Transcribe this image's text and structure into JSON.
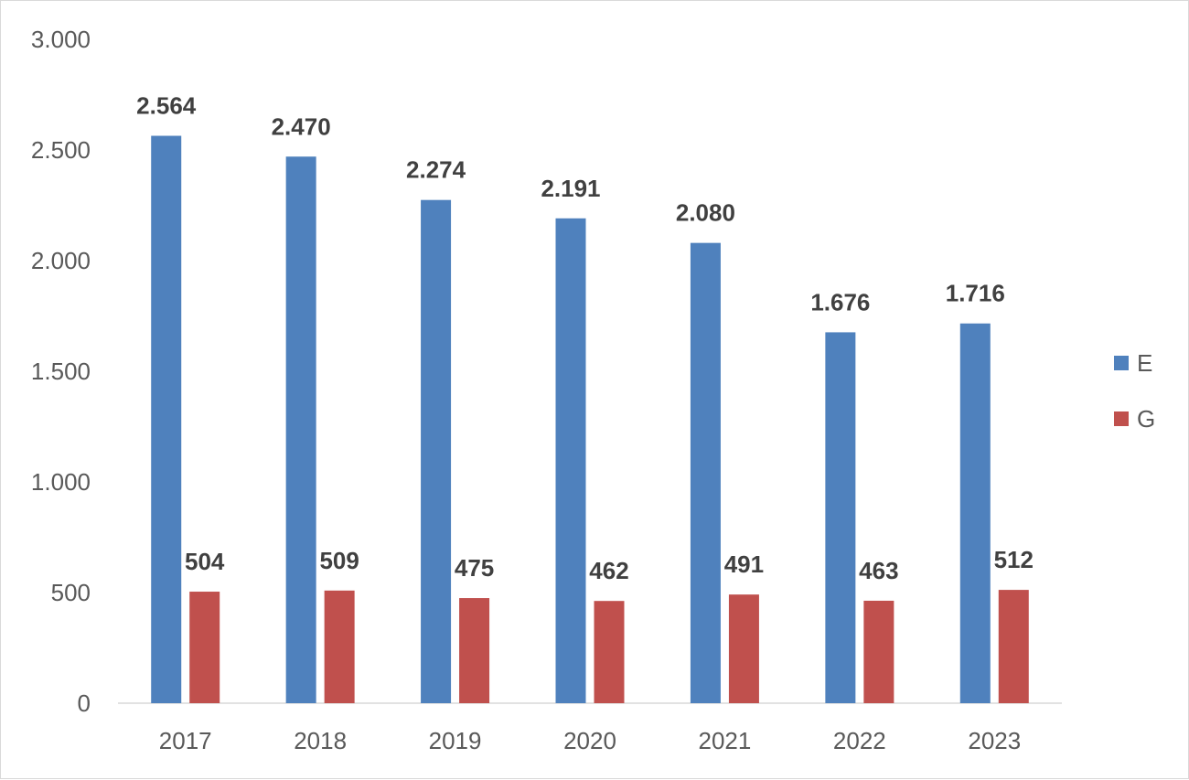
{
  "colors": {
    "E": "#4f81bd",
    "G": "#c0504d",
    "axis": "#d9d9d9",
    "text": "#595959",
    "label": "#404040"
  },
  "chart_data": {
    "type": "bar",
    "title": "",
    "xlabel": "",
    "ylabel": "",
    "categories": [
      "2017",
      "2018",
      "2019",
      "2020",
      "2021",
      "2022",
      "2023"
    ],
    "series": [
      {
        "name": "E",
        "values": [
          2564,
          2470,
          2274,
          2191,
          2080,
          1676,
          1716
        ],
        "labels": [
          "2.564",
          "2.470",
          "2.274",
          "2.191",
          "2.080",
          "1.676",
          "1.716"
        ]
      },
      {
        "name": "G",
        "values": [
          504,
          509,
          475,
          462,
          491,
          463,
          512
        ],
        "labels": [
          "504",
          "509",
          "475",
          "462",
          "491",
          "463",
          "512"
        ]
      }
    ],
    "ylim": [
      0,
      3000
    ],
    "yticks": [
      0,
      500,
      1000,
      1500,
      2000,
      2500,
      3000
    ],
    "ytick_labels": [
      "0",
      "500",
      "1.000",
      "1.500",
      "2.000",
      "2.500",
      "3.000"
    ],
    "grid": false,
    "legend": "right"
  }
}
